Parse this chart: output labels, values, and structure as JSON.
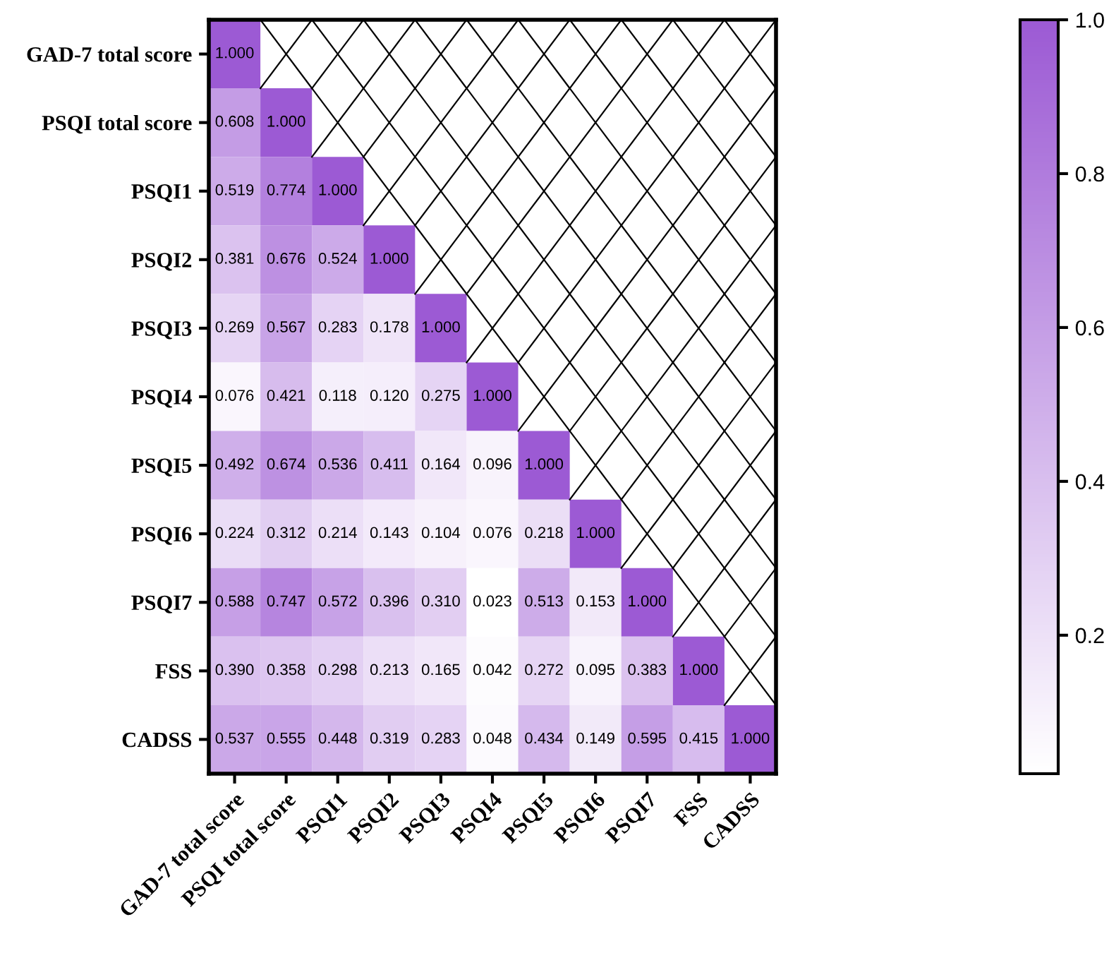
{
  "chart_data": {
    "type": "heatmap",
    "categories": [
      "GAD-7 total score",
      "PSQI total score",
      "PSQI1",
      "PSQI2",
      "PSQI3",
      "PSQI4",
      "PSQI5",
      "PSQI6",
      "PSQI7",
      "FSS",
      "CADSS"
    ],
    "y_categories": [
      "GAD-7 total score",
      "PSQI total score",
      "PSQI1",
      "PSQI2",
      "PSQI3",
      "PSQI4",
      "PSQI5",
      "PSQI6",
      "PSQI7",
      "FSS",
      "CADSS"
    ],
    "cells": [
      [
        1.0,
        null,
        null,
        null,
        null,
        null,
        null,
        null,
        null,
        null,
        null
      ],
      [
        0.608,
        1.0,
        null,
        null,
        null,
        null,
        null,
        null,
        null,
        null,
        null
      ],
      [
        0.519,
        0.774,
        1.0,
        null,
        null,
        null,
        null,
        null,
        null,
        null,
        null
      ],
      [
        0.381,
        0.676,
        0.524,
        1.0,
        null,
        null,
        null,
        null,
        null,
        null,
        null
      ],
      [
        0.269,
        0.567,
        0.283,
        0.178,
        1.0,
        null,
        null,
        null,
        null,
        null,
        null
      ],
      [
        0.076,
        0.421,
        0.118,
        0.12,
        0.275,
        1.0,
        null,
        null,
        null,
        null,
        null
      ],
      [
        0.492,
        0.674,
        0.536,
        0.411,
        0.164,
        0.096,
        1.0,
        null,
        null,
        null,
        null
      ],
      [
        0.224,
        0.312,
        0.214,
        0.143,
        0.104,
        0.076,
        0.218,
        1.0,
        null,
        null,
        null
      ],
      [
        0.588,
        0.747,
        0.572,
        0.396,
        0.31,
        0.023,
        0.513,
        0.153,
        1.0,
        null,
        null
      ],
      [
        0.39,
        0.358,
        0.298,
        0.213,
        0.165,
        0.042,
        0.272,
        0.095,
        0.383,
        1.0,
        null
      ],
      [
        0.537,
        0.555,
        0.448,
        0.319,
        0.283,
        0.048,
        0.434,
        0.149,
        0.595,
        0.415,
        1.0
      ]
    ],
    "cell_labels": [
      [
        "1.000",
        null,
        null,
        null,
        null,
        null,
        null,
        null,
        null,
        null,
        null
      ],
      [
        "0.608",
        "1.000",
        null,
        null,
        null,
        null,
        null,
        null,
        null,
        null,
        null
      ],
      [
        "0.519",
        "0.774",
        "1.000",
        null,
        null,
        null,
        null,
        null,
        null,
        null,
        null
      ],
      [
        "0.381",
        "0.676",
        "0.524",
        "1.000",
        null,
        null,
        null,
        null,
        null,
        null,
        null
      ],
      [
        "0.269",
        "0.567",
        "0.283",
        "0.178",
        "1.000",
        null,
        null,
        null,
        null,
        null,
        null
      ],
      [
        "0.076",
        "0.421",
        "0.118",
        "0.120",
        "0.275",
        "1.000",
        null,
        null,
        null,
        null,
        null
      ],
      [
        "0.492",
        "0.674",
        "0.536",
        "0.411",
        "0.164",
        "0.096",
        "1.000",
        null,
        null,
        null,
        null
      ],
      [
        "0.224",
        "0.312",
        "0.214",
        "0.143",
        "0.104",
        "0.076",
        "0.218",
        "1.000",
        null,
        null,
        null
      ],
      [
        "0.588",
        "0.747",
        "0.572",
        "0.396",
        "0.310",
        "0.023",
        "0.513",
        "0.153",
        "1.000",
        null,
        null
      ],
      [
        "0.390",
        "0.358",
        "0.298",
        "0.213",
        "0.165",
        "0.042",
        "0.272",
        "0.095",
        "0.383",
        "1.000",
        null
      ],
      [
        "0.537",
        "0.555",
        "0.448",
        "0.319",
        "0.283",
        "0.048",
        "0.434",
        "0.149",
        "0.595",
        "0.415",
        "1.000"
      ]
    ],
    "colors": [
      "#ffffff",
      "#9c5ad4"
    ],
    "clim": [
      0.02,
      1.0
    ],
    "cticks": [
      0.2,
      0.4,
      0.6,
      0.8,
      {
        "value": 1.0,
        "label": "1.0"
      }
    ]
  }
}
